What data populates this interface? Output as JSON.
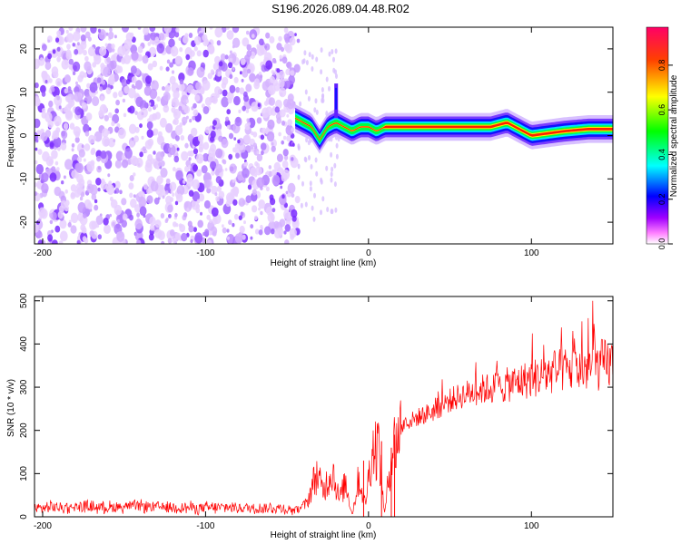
{
  "title": "S196.2026.089.04.48.R02",
  "chart_data": [
    {
      "type": "heatmap",
      "xlabel": "Height of straight line (km)",
      "ylabel": "Frequency (Hz)",
      "xlim": [
        -205,
        150
      ],
      "ylim": [
        -25,
        25
      ],
      "x_ticks": [
        -200,
        -100,
        0,
        100
      ],
      "y_ticks": [
        -20,
        -10,
        0,
        10,
        20
      ],
      "colorbar": {
        "label": "Normalized spectral amplitude",
        "range": [
          0,
          0.97
        ],
        "ticks": [
          0.0,
          0.2,
          0.4,
          0.6,
          0.8
        ],
        "colors": [
          "#ffffff",
          "#ff00ff",
          "#0000ff",
          "#00ffff",
          "#00ff00",
          "#ffff00",
          "#ff0000"
        ]
      },
      "noise_region": {
        "x_range": [
          -205,
          -43
        ],
        "amplitude": "low (purple speckle)"
      },
      "signal_trace": {
        "x": [
          -45,
          -35,
          -30,
          -25,
          -20,
          -15,
          -10,
          -5,
          0,
          5,
          10,
          20,
          40,
          60,
          75,
          85,
          95,
          100,
          110,
          120,
          135,
          150
        ],
        "frequency": [
          4,
          2,
          -1,
          2,
          3,
          2,
          1,
          2,
          2,
          1,
          2,
          2,
          2,
          2,
          2,
          3,
          1,
          0,
          0.5,
          1,
          1.5,
          1.5
        ]
      },
      "grid": false
    },
    {
      "type": "line",
      "xlabel": "Height of straight line (km)",
      "ylabel": "SNR (10 * v/v)",
      "xlim": [
        -205,
        150
      ],
      "ylim": [
        0,
        510
      ],
      "x_ticks": [
        -200,
        -100,
        0,
        100
      ],
      "y_ticks": [
        0,
        100,
        200,
        300,
        400,
        500
      ],
      "series": [
        {
          "color": "#ff0000",
          "x": [
            -205,
            -190,
            -175,
            -160,
            -145,
            -130,
            -115,
            -100,
            -85,
            -70,
            -55,
            -45,
            -38,
            -32,
            -28,
            -22,
            -18,
            -14,
            -10,
            -6,
            -2,
            2,
            6,
            10,
            14,
            18,
            22,
            30,
            40,
            50,
            60,
            70,
            80,
            90,
            100,
            110,
            120,
            130,
            140,
            150
          ],
          "y": [
            20,
            22,
            24,
            22,
            25,
            23,
            22,
            20,
            22,
            20,
            20,
            15,
            30,
            100,
            60,
            110,
            40,
            80,
            5,
            90,
            30,
            150,
            170,
            5,
            150,
            190,
            215,
            230,
            245,
            270,
            285,
            295,
            300,
            310,
            320,
            330,
            340,
            340,
            350,
            355
          ]
        }
      ],
      "grid": false
    }
  ]
}
